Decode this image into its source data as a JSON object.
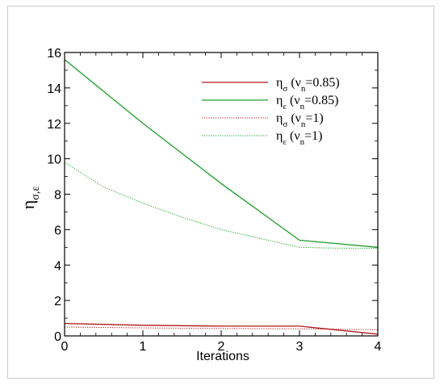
{
  "chart_data": {
    "type": "line",
    "title": "",
    "xlabel": "Iterations",
    "ylabel": "ησ,ε",
    "xlim": [
      0,
      4
    ],
    "ylim": [
      0,
      16
    ],
    "xticks": [
      0,
      1,
      2,
      3,
      4
    ],
    "yticks": [
      0,
      2,
      4,
      6,
      8,
      10,
      12,
      14,
      16
    ],
    "grid": false,
    "legend": "top-right",
    "series": [
      {
        "key": "s1",
        "name": "ησ (νn=0.85)",
        "color": "#b01818",
        "style": "solid",
        "x": [
          0,
          1,
          2,
          3,
          4
        ],
        "values": [
          0.7,
          0.6,
          0.55,
          0.55,
          0.1
        ]
      },
      {
        "key": "s2",
        "name": "ηε (νn=0.85)",
        "color": "#1e9e2a",
        "style": "solid",
        "x": [
          0,
          1,
          2,
          3,
          4
        ],
        "values": [
          15.6,
          12.0,
          8.6,
          5.4,
          5.0
        ]
      },
      {
        "key": "s3",
        "name": "ησ (νn=1)",
        "color": "#b01818",
        "style": "dotted",
        "x": [
          0,
          1,
          2,
          3,
          4
        ],
        "values": [
          0.5,
          0.45,
          0.42,
          0.4,
          0.35
        ]
      },
      {
        "key": "s4",
        "name": "ηε (νn=1)",
        "color": "#1e9e2a",
        "style": "dotted",
        "x": [
          0,
          0.25,
          0.5,
          1,
          1.5,
          2,
          2.5,
          3,
          3.5,
          4
        ],
        "values": [
          9.8,
          9.1,
          8.4,
          7.5,
          6.7,
          6.0,
          5.5,
          5.0,
          4.95,
          4.95
        ]
      }
    ]
  }
}
